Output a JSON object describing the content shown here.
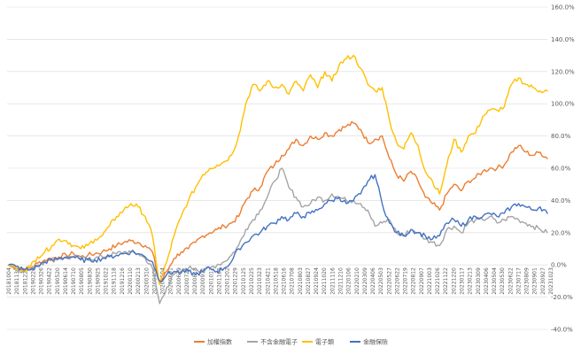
{
  "chart_data": {
    "type": "line",
    "title": "",
    "xlabel": "",
    "ylabel": "",
    "ylim": [
      -40,
      160
    ],
    "yticks": [
      "-40.0%",
      "-20.0%",
      "0.0%",
      "20.0%",
      "40.0%",
      "60.0%",
      "80.0%",
      "100.0%",
      "120.0%",
      "140.0%",
      "160.0%"
    ],
    "ytick_values": [
      -40,
      -20,
      0,
      20,
      40,
      60,
      80,
      100,
      120,
      140,
      160
    ],
    "grid": "horizontal",
    "legend_position": "bottom",
    "x": [
      "20181004",
      "20181030",
      "20181123",
      "20181219",
      "20190118",
      "20190212",
      "20190308",
      "20190402",
      "20190426",
      "20190522",
      "20190617",
      "20190711",
      "20190805",
      "20190829",
      "20190924",
      "20191018",
      "20191112",
      "20191206",
      "20200102",
      "20200131",
      "20200224",
      "20200319",
      "20200413",
      "20200507",
      "20200601",
      "20200625",
      "20200720",
      "20200813",
      "20200907",
      "20201001",
      "20201026",
      "20201119",
      "20201214",
      "20210108",
      "20210202",
      "20210226",
      "20210323",
      "20210416",
      "20210511",
      "20210604",
      "20210629",
      "20210722",
      "20210816",
      "20210909",
      "20211004",
      "20211028",
      "20211122",
      "20211216",
      "20220111",
      "20220208",
      "20220304",
      "20220328",
      "20220422",
      "20220518",
      "20220613",
      "20220707",
      "20220801",
      "20220825",
      "20220919",
      "20221013",
      "20221107",
      "20221201",
      "20221226",
      "20230119",
      "20230213",
      "20230309",
      "20230403",
      "20230427",
      "20230523",
      "20230616",
      "20230711",
      "20230804",
      "20230829",
      "20230922",
      "20231016",
      "20231030"
    ],
    "xtick_labels": [
      "20181004",
      "20181130",
      "20181227",
      "20190226",
      "20190326",
      "20190422",
      "20190520",
      "20190614",
      "20190710",
      "20190805",
      "20190830",
      "20190925",
      "20191022",
      "20191118",
      "20191216",
      "20200110",
      "20200213",
      "20200310",
      "20200406",
      "20200504",
      "20200601",
      "20200629",
      "20200722",
      "20200818",
      "20200911",
      "20201012",
      "20201105",
      "20201202",
      "20201229",
      "20210125",
      "20210225",
      "20210323",
      "20210421",
      "20210518",
      "20210616",
      "20210708",
      "20210803",
      "20210827",
      "20210924",
      "20211020",
      "20211116",
      "20211210",
      "20220106",
      "20220210",
      "20220309",
      "20220406",
      "20220503",
      "20220527",
      "20220622",
      "20220719",
      "20220812",
      "20220907",
      "20221003",
      "20221026",
      "20221122",
      "20221220",
      "20230117",
      "20230213",
      "20230309",
      "20230406",
      "20230504",
      "20230530",
      "20230622",
      "20230717",
      "20230809",
      "20230901",
      "20230927",
      "20231023"
    ],
    "series": [
      {
        "name": "加權指數",
        "color": "#ED7D31",
        "values": [
          0,
          -2,
          -3,
          -2,
          1,
          3,
          4,
          5,
          6,
          7,
          5,
          6,
          7,
          8,
          10,
          12,
          14,
          15,
          14,
          12,
          8,
          -12,
          -4,
          4,
          8,
          10,
          14,
          18,
          20,
          22,
          24,
          26,
          30,
          40,
          46,
          48,
          58,
          62,
          68,
          72,
          78,
          74,
          80,
          78,
          82,
          80,
          84,
          86,
          88,
          84,
          76,
          78,
          80,
          66,
          56,
          52,
          58,
          52,
          42,
          38,
          34,
          44,
          50,
          46,
          52,
          54,
          58,
          60,
          60,
          62,
          70,
          74,
          70,
          68,
          70,
          66
        ]
      },
      {
        "name": "不含金融電子",
        "color": "#A5A5A5",
        "values": [
          0,
          -2,
          -4,
          -3,
          0,
          2,
          3,
          4,
          4,
          5,
          4,
          4,
          4,
          5,
          6,
          7,
          8,
          8,
          7,
          4,
          -2,
          -24,
          -14,
          -6,
          -4,
          -2,
          -2,
          -4,
          -2,
          0,
          2,
          6,
          12,
          22,
          28,
          34,
          42,
          52,
          60,
          48,
          42,
          36,
          38,
          42,
          40,
          44,
          42,
          40,
          40,
          38,
          34,
          24,
          26,
          28,
          20,
          18,
          22,
          20,
          16,
          14,
          12,
          22,
          24,
          20,
          26,
          28,
          28,
          30,
          26,
          28,
          30,
          28,
          26,
          24,
          22,
          20
        ]
      },
      {
        "name": "電子類",
        "color": "#FFC000",
        "values": [
          0,
          -2,
          -3,
          -1,
          5,
          8,
          12,
          16,
          15,
          12,
          10,
          12,
          16,
          18,
          24,
          30,
          34,
          38,
          36,
          30,
          18,
          -12,
          2,
          18,
          30,
          40,
          48,
          56,
          60,
          62,
          64,
          68,
          80,
          100,
          112,
          108,
          114,
          110,
          112,
          106,
          114,
          108,
          118,
          110,
          120,
          114,
          124,
          128,
          130,
          122,
          112,
          108,
          110,
          90,
          76,
          72,
          82,
          74,
          58,
          52,
          44,
          62,
          78,
          70,
          80,
          82,
          92,
          96,
          96,
          98,
          112,
          116,
          112,
          110,
          108,
          108
        ]
      },
      {
        "name": "金融保險",
        "color": "#4472C4",
        "values": [
          0,
          -1,
          -3,
          -3,
          -1,
          2,
          3,
          4,
          5,
          5,
          3,
          3,
          3,
          4,
          5,
          6,
          7,
          8,
          7,
          5,
          2,
          -10,
          -6,
          -4,
          -5,
          -4,
          -6,
          -4,
          -2,
          -4,
          -2,
          2,
          10,
          14,
          18,
          20,
          24,
          26,
          30,
          28,
          32,
          30,
          32,
          34,
          38,
          40,
          42,
          38,
          40,
          44,
          52,
          56,
          38,
          26,
          20,
          18,
          22,
          20,
          18,
          16,
          18,
          26,
          28,
          24,
          28,
          30,
          30,
          32,
          30,
          32,
          36,
          38,
          36,
          34,
          36,
          32
        ]
      }
    ]
  }
}
